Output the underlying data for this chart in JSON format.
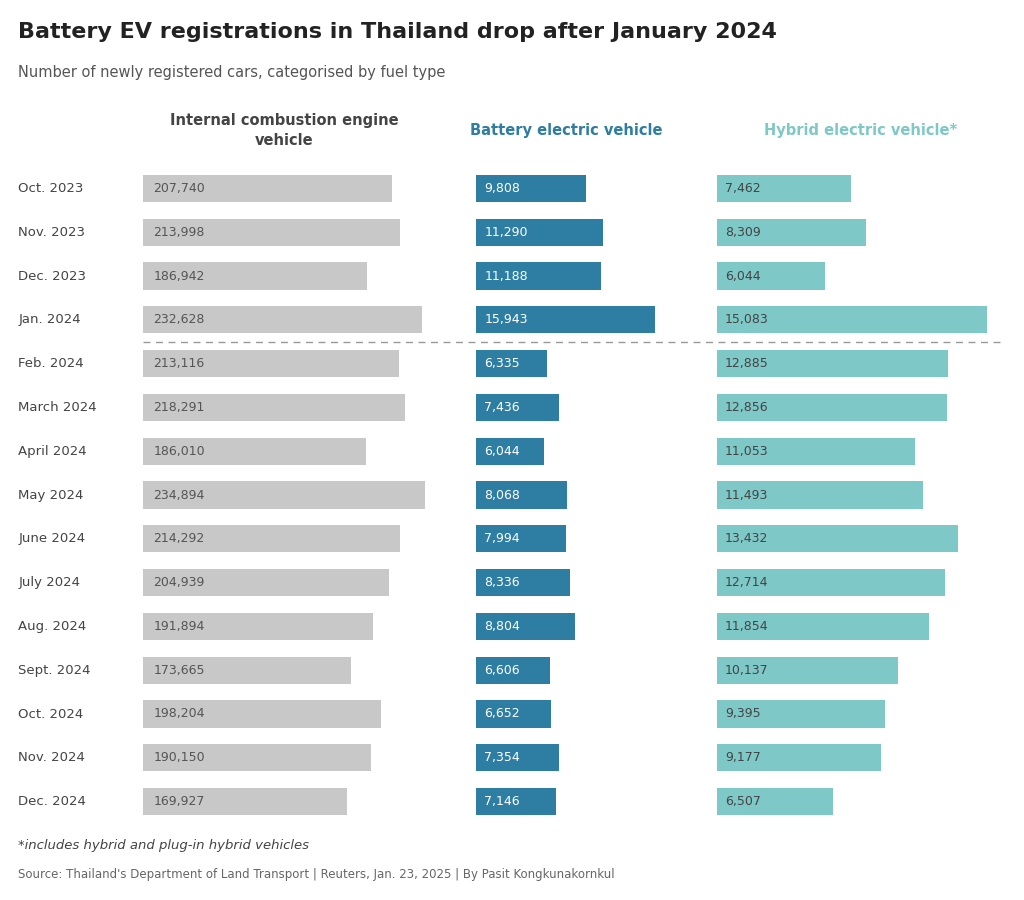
{
  "title": "Battery EV registrations in Thailand drop after January 2024",
  "subtitle": "Number of newly registered cars, categorised by fuel type",
  "footnote": "*includes hybrid and plug-in hybrid vehicles",
  "source": "Source: Thailand's Department of Land Transport | Reuters, Jan. 23, 2025 | By Pasit Kongkunakornkul",
  "months": [
    "Oct. 2023",
    "Nov. 2023",
    "Dec. 2023",
    "Jan. 2024",
    "Feb. 2024",
    "March 2024",
    "April 2024",
    "May 2024",
    "June 2024",
    "July 2024",
    "Aug. 2024",
    "Sept. 2024",
    "Oct. 2024",
    "Nov. 2024",
    "Dec. 2024"
  ],
  "ice": [
    207740,
    213998,
    186942,
    232628,
    213116,
    218291,
    186010,
    234894,
    214292,
    204939,
    191894,
    173665,
    198204,
    190150,
    169927
  ],
  "bev": [
    9808,
    11290,
    11188,
    15943,
    6335,
    7436,
    6044,
    8068,
    7994,
    8336,
    8804,
    6606,
    6652,
    7354,
    7146
  ],
  "hev": [
    7462,
    8309,
    6044,
    15083,
    12885,
    12856,
    11053,
    11493,
    13432,
    12714,
    11854,
    10137,
    9395,
    9177,
    6507
  ],
  "ice_color": "#c8c8c8",
  "bev_color": "#2e7da3",
  "hev_color": "#7ec8c8",
  "col1_header": "Internal combustion engine\nvehicle",
  "col2_header": "Battery electric vehicle",
  "col3_header": "Hybrid electric vehicle*",
  "col1_header_color": "#444444",
  "col2_header_color": "#2e7da3",
  "col3_header_color": "#7ec8c8",
  "divider_after_index": 3,
  "background_color": "#ffffff"
}
